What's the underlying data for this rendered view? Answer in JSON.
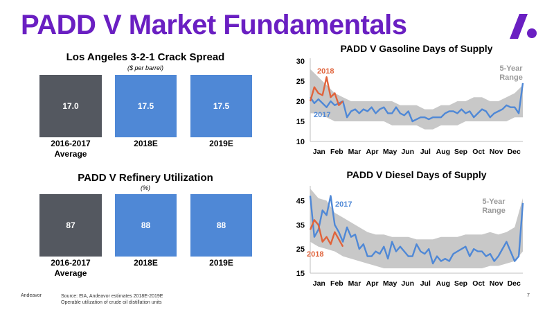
{
  "title": "PADD V Market Fundamentals",
  "crack": {
    "title": "Los Angeles 3-2-1 Crack Spread",
    "subtitle": "($ per barrel)",
    "boxes": [
      {
        "value": "17.0",
        "label_line1": "2016-2017",
        "label_line2": "Average",
        "color": "#545860"
      },
      {
        "value": "17.5",
        "label_line1": "2018E",
        "label_line2": "",
        "color": "#4f88d6"
      },
      {
        "value": "17.5",
        "label_line1": "2019E",
        "label_line2": "",
        "color": "#4f88d6"
      }
    ]
  },
  "util": {
    "title": "PADD V Refinery Utilization",
    "subtitle": "(%)",
    "boxes": [
      {
        "value": "87",
        "label_line1": "2016-2017",
        "label_line2": "Average",
        "color": "#545860"
      },
      {
        "value": "88",
        "label_line1": "2018E",
        "label_line2": "",
        "color": "#4f88d6"
      },
      {
        "value": "88",
        "label_line1": "2019E",
        "label_line2": "",
        "color": "#4f88d6"
      }
    ]
  },
  "chart_data": [
    {
      "type": "line",
      "title": "PADD V Gasoline Days of Supply",
      "x_ticks": [
        "Jan",
        "Feb",
        "Mar",
        "Apr",
        "May",
        "Jun",
        "Jul",
        "Aug",
        "Sep",
        "Oct",
        "Nov",
        "Dec"
      ],
      "x_range": [
        0,
        52
      ],
      "ylim": [
        10,
        30
      ],
      "y_ticks": [
        10,
        15,
        20,
        25,
        30
      ],
      "annotations": [
        "2018",
        "2017",
        "5-Year Range"
      ],
      "range_color": "#c8c8c8",
      "range": {
        "x": [
          0,
          2,
          4,
          6,
          8,
          10,
          12,
          14,
          16,
          18,
          20,
          22,
          24,
          26,
          28,
          30,
          32,
          34,
          36,
          38,
          40,
          42,
          44,
          46,
          48,
          50,
          52
        ],
        "low": [
          17,
          17,
          16,
          15,
          15,
          15,
          15,
          15,
          15,
          15,
          14,
          14,
          14,
          14,
          13,
          13,
          14,
          14,
          14,
          15,
          15,
          15,
          15,
          15,
          15,
          16,
          16
        ],
        "high": [
          28,
          26,
          24,
          22,
          21,
          20,
          20,
          20,
          20,
          20,
          20,
          19,
          19,
          19,
          18,
          18,
          19,
          19,
          20,
          20,
          21,
          21,
          20,
          20,
          21,
          22,
          24
        ]
      },
      "series": [
        {
          "name": "2017",
          "color": "#4f88d6",
          "x": [
            0,
            1,
            2,
            3,
            4,
            5,
            6,
            7,
            8,
            9,
            10,
            11,
            12,
            13,
            14,
            15,
            16,
            17,
            18,
            19,
            20,
            21,
            22,
            23,
            24,
            25,
            26,
            27,
            28,
            29,
            30,
            31,
            32,
            33,
            34,
            35,
            36,
            37,
            38,
            39,
            40,
            41,
            42,
            43,
            44,
            45,
            46,
            47,
            48,
            49,
            50,
            51,
            52
          ],
          "y": [
            21,
            19.5,
            20.5,
            19.5,
            18.5,
            20,
            19,
            19.5,
            20,
            16,
            17.5,
            18,
            17,
            18,
            17.5,
            18.5,
            17,
            18,
            18.5,
            17,
            17,
            18.5,
            17,
            16.5,
            17.5,
            15,
            15.5,
            16,
            16,
            15.5,
            16,
            16,
            16,
            17,
            17.5,
            17.5,
            17,
            18,
            17,
            17.5,
            16,
            17,
            18,
            17.5,
            16,
            17,
            17.5,
            18,
            19,
            18.5,
            18.5,
            17,
            24.5
          ]
        },
        {
          "name": "2018",
          "color": "#e0633b",
          "x": [
            0,
            1,
            2,
            3,
            4,
            5,
            6,
            7,
            8
          ],
          "y": [
            20,
            23.5,
            22,
            21.5,
            26,
            21,
            22,
            19,
            20
          ]
        }
      ]
    },
    {
      "type": "line",
      "title": "PADD V Diesel Days of Supply",
      "x_ticks": [
        "Jan",
        "Feb",
        "Mar",
        "Apr",
        "May",
        "Jun",
        "Jul",
        "Aug",
        "Sep",
        "Oct",
        "Nov",
        "Dec"
      ],
      "x_range": [
        0,
        52
      ],
      "ylim": [
        15,
        50
      ],
      "y_ticks": [
        15,
        25,
        35,
        45
      ],
      "annotations": [
        "2017",
        "2018",
        "5-Year Range"
      ],
      "range_color": "#c8c8c8",
      "range": {
        "x": [
          0,
          2,
          4,
          6,
          8,
          10,
          12,
          14,
          16,
          18,
          20,
          22,
          24,
          26,
          28,
          30,
          32,
          34,
          36,
          38,
          40,
          42,
          44,
          46,
          48,
          50,
          52
        ],
        "low": [
          28,
          26,
          25,
          24,
          22,
          21,
          20,
          19,
          18,
          17,
          17,
          17,
          17,
          17,
          17,
          17,
          17,
          17,
          17,
          17,
          17,
          17,
          18,
          18,
          19,
          20,
          24
        ],
        "high": [
          50,
          46,
          45,
          40,
          38,
          36,
          34,
          32,
          31,
          31,
          30,
          30,
          30,
          29,
          29,
          29,
          30,
          30,
          30,
          31,
          31,
          31,
          32,
          31,
          32,
          34,
          46
        ]
      },
      "series": [
        {
          "name": "2017",
          "color": "#4f88d6",
          "x": [
            0,
            1,
            2,
            3,
            4,
            5,
            6,
            7,
            8,
            9,
            10,
            11,
            12,
            13,
            14,
            15,
            16,
            17,
            18,
            19,
            20,
            21,
            22,
            23,
            24,
            25,
            26,
            27,
            28,
            29,
            30,
            31,
            32,
            33,
            34,
            35,
            36,
            37,
            38,
            39,
            40,
            41,
            42,
            43,
            44,
            45,
            46,
            47,
            48,
            49,
            50,
            51,
            52
          ],
          "y": [
            47,
            30,
            33,
            41,
            39,
            47,
            35,
            32,
            28,
            34,
            30,
            31,
            25,
            27,
            22,
            22,
            24,
            23,
            26,
            21,
            28,
            24,
            26,
            24,
            22,
            22,
            27,
            24,
            23,
            25,
            19,
            22,
            20,
            21,
            20,
            23,
            24,
            25,
            26,
            22,
            25,
            24,
            24,
            22,
            23,
            20,
            22,
            25,
            28,
            24,
            20,
            22,
            44
          ]
        },
        {
          "name": "2018",
          "color": "#e0633b",
          "x": [
            0,
            1,
            2,
            3,
            4,
            5,
            6,
            7,
            8
          ],
          "y": [
            33,
            37,
            35,
            28,
            30,
            27,
            32,
            29,
            26
          ]
        }
      ]
    }
  ],
  "footer": {
    "brand": "Andeavor",
    "source_line1": "Source: EIA, Andeavor estimates 2018E-2019E",
    "source_line2": "Operable utilization of crude oil distillation units",
    "page": "7"
  }
}
